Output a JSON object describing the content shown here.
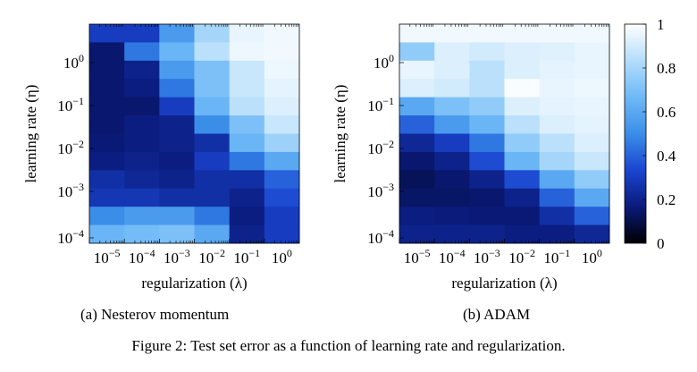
{
  "figure": {
    "caption": "Figure 2: Test set error as a function of learning rate and regularization.",
    "subcaption_a": "(a) Nesterov momentum",
    "subcaption_b": "(b) ADAM"
  },
  "chart_data": [
    {
      "type": "heatmap",
      "title": "(a) Nesterov momentum",
      "xlabel": "regularization (λ)",
      "ylabel": "learning rate (η)",
      "x_scale": "log",
      "y_scale": "log",
      "x_tick_labels": [
        "10^-5",
        "10^-4",
        "10^-3",
        "10^-2",
        "10^-1",
        "10^0"
      ],
      "y_tick_labels": [
        "10^-4",
        "10^-3",
        "10^-2",
        "10^-1",
        "10^0"
      ],
      "rows_top_to_bottom": 12,
      "columns": 6,
      "values": [
        [
          0.3,
          0.3,
          0.55,
          0.8,
          0.95,
          0.97
        ],
        [
          0.15,
          0.45,
          0.65,
          0.85,
          0.96,
          0.97
        ],
        [
          0.15,
          0.2,
          0.55,
          0.7,
          0.88,
          0.96
        ],
        [
          0.15,
          0.18,
          0.45,
          0.7,
          0.88,
          0.94
        ],
        [
          0.15,
          0.15,
          0.3,
          0.65,
          0.85,
          0.92
        ],
        [
          0.15,
          0.18,
          0.2,
          0.5,
          0.7,
          0.88
        ],
        [
          0.16,
          0.18,
          0.2,
          0.25,
          0.65,
          0.78
        ],
        [
          0.18,
          0.2,
          0.18,
          0.3,
          0.45,
          0.6
        ],
        [
          0.25,
          0.22,
          0.2,
          0.25,
          0.25,
          0.4
        ],
        [
          0.28,
          0.28,
          0.25,
          0.25,
          0.2,
          0.35
        ],
        [
          0.5,
          0.55,
          0.55,
          0.45,
          0.18,
          0.3
        ],
        [
          0.65,
          0.68,
          0.7,
          0.6,
          0.2,
          0.3
        ]
      ]
    },
    {
      "type": "heatmap",
      "title": "(b) ADAM",
      "xlabel": "regularization (λ)",
      "ylabel": "learning rate (η)",
      "x_scale": "log",
      "y_scale": "log",
      "x_tick_labels": [
        "10^-5",
        "10^-4",
        "10^-3",
        "10^-2",
        "10^-1",
        "10^0"
      ],
      "y_tick_labels": [
        "10^-4",
        "10^-3",
        "10^-2",
        "10^-1",
        "10^0"
      ],
      "rows_top_to_bottom": 12,
      "columns": 6,
      "values": [
        [
          0.97,
          0.97,
          0.97,
          0.97,
          0.97,
          0.97
        ],
        [
          0.75,
          0.92,
          0.9,
          0.92,
          0.93,
          0.95
        ],
        [
          0.95,
          0.92,
          0.85,
          0.92,
          0.94,
          0.95
        ],
        [
          0.92,
          0.9,
          0.85,
          0.99,
          0.95,
          0.96
        ],
        [
          0.6,
          0.7,
          0.75,
          0.92,
          0.94,
          0.95
        ],
        [
          0.4,
          0.55,
          0.65,
          0.85,
          0.92,
          0.94
        ],
        [
          0.22,
          0.3,
          0.45,
          0.75,
          0.85,
          0.92
        ],
        [
          0.15,
          0.2,
          0.35,
          0.65,
          0.8,
          0.88
        ],
        [
          0.12,
          0.15,
          0.2,
          0.35,
          0.6,
          0.75
        ],
        [
          0.14,
          0.14,
          0.15,
          0.2,
          0.4,
          0.6
        ],
        [
          0.18,
          0.17,
          0.16,
          0.16,
          0.25,
          0.4
        ],
        [
          0.2,
          0.2,
          0.2,
          0.18,
          0.18,
          0.22
        ]
      ]
    }
  ],
  "colorbar": {
    "range": [
      0,
      1
    ],
    "tick_values": [
      0,
      0.2,
      0.4,
      0.6,
      0.8,
      1
    ],
    "tick_labels": [
      "0",
      "0.2",
      "0.4",
      "0.6",
      "0.8",
      "1"
    ],
    "colors": [
      "#000000",
      "#0a1a7a",
      "#1a45d0",
      "#3a8ee8",
      "#6fb9f7",
      "#b3ddfb",
      "#ffffff"
    ]
  }
}
